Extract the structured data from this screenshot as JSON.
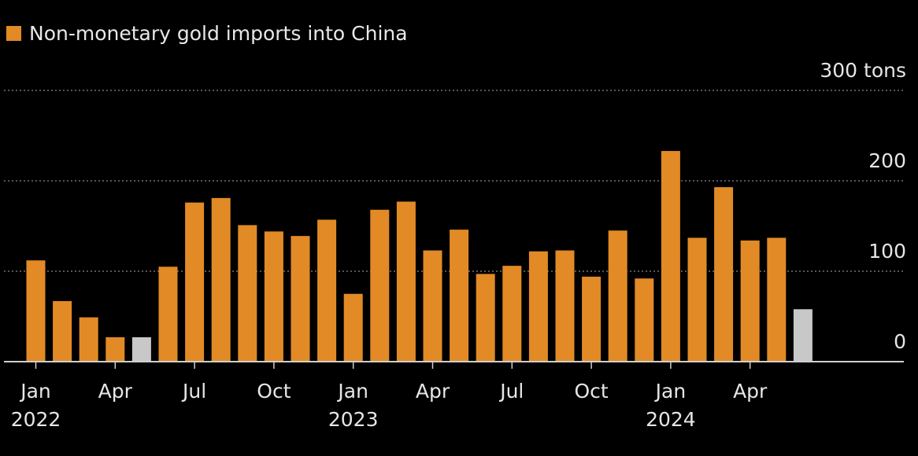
{
  "legend": {
    "label": "Non-monetary gold imports into China",
    "color": "#e28a26"
  },
  "colors": {
    "bar": "#e28a26",
    "highlight": "#c8c8c8",
    "grid": "#8a8a8a",
    "axis": "#cfcfcf",
    "background": "#000000"
  },
  "chart_data": {
    "type": "bar",
    "title": "",
    "unit": "tons",
    "ylabel": "",
    "ylim": [
      0,
      300
    ],
    "yticks": [
      {
        "value": 0,
        "label": "0"
      },
      {
        "value": 100,
        "label": "100"
      },
      {
        "value": 200,
        "label": "200"
      },
      {
        "value": 300,
        "label": "300 tons"
      }
    ],
    "grid": true,
    "legend_position": "top-left",
    "categories": [
      "2022-01",
      "2022-02",
      "2022-03",
      "2022-04",
      "2022-05",
      "2022-06",
      "2022-07",
      "2022-08",
      "2022-09",
      "2022-10",
      "2022-11",
      "2022-12",
      "2023-01",
      "2023-02",
      "2023-03",
      "2023-04",
      "2023-05",
      "2023-06",
      "2023-07",
      "2023-08",
      "2023-09",
      "2023-10",
      "2023-11",
      "2023-12",
      "2024-01",
      "2024-02",
      "2024-03",
      "2024-04",
      "2024-05",
      "2024-06"
    ],
    "series": [
      {
        "name": "Non-monetary gold imports into China",
        "values": [
          112,
          67,
          49,
          27,
          27,
          105,
          176,
          181,
          151,
          144,
          139,
          157,
          75,
          168,
          177,
          123,
          146,
          97,
          106,
          122,
          123,
          94,
          145,
          92,
          233,
          137,
          193,
          134,
          137,
          58
        ],
        "highlight_indices": [
          4,
          29
        ]
      }
    ],
    "xticks": [
      {
        "index": 0,
        "label": "Jan",
        "year": "2022"
      },
      {
        "index": 3,
        "label": "Apr",
        "year": ""
      },
      {
        "index": 6,
        "label": "Jul",
        "year": ""
      },
      {
        "index": 9,
        "label": "Oct",
        "year": ""
      },
      {
        "index": 12,
        "label": "Jan",
        "year": "2023"
      },
      {
        "index": 15,
        "label": "Apr",
        "year": ""
      },
      {
        "index": 18,
        "label": "Jul",
        "year": ""
      },
      {
        "index": 21,
        "label": "Oct",
        "year": ""
      },
      {
        "index": 24,
        "label": "Jan",
        "year": "2024"
      },
      {
        "index": 27,
        "label": "Apr",
        "year": ""
      }
    ]
  }
}
